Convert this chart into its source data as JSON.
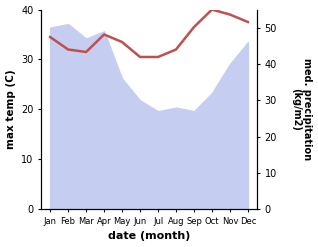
{
  "months": [
    "Jan",
    "Feb",
    "Mar",
    "Apr",
    "May",
    "Jun",
    "Jul",
    "Aug",
    "Sep",
    "Oct",
    "Nov",
    "Dec"
  ],
  "temp": [
    34.5,
    32.0,
    31.5,
    35.0,
    33.5,
    30.5,
    30.5,
    32.0,
    36.5,
    40.0,
    39.0,
    37.5
  ],
  "precip": [
    50,
    51,
    47,
    49,
    36,
    30,
    27,
    28,
    27,
    32,
    40,
    46
  ],
  "temp_color": "#c0504d",
  "precip_fill_color": "#c5cdf0",
  "ylabel_left": "max temp (C)",
  "ylabel_right": "med. precipitation\n(kg/m2)",
  "xlabel": "date (month)",
  "ylim_left": [
    0,
    40
  ],
  "ylim_right": [
    0,
    55
  ],
  "yticks_left": [
    0,
    10,
    20,
    30,
    40
  ],
  "yticks_right": [
    0,
    10,
    20,
    30,
    40,
    50
  ],
  "bg_color": "#ffffff"
}
